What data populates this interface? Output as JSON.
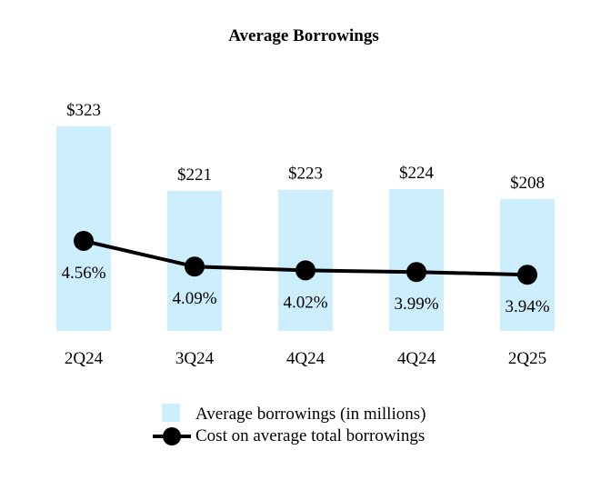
{
  "chart_data": {
    "type": "bar",
    "title": "Average Borrowings",
    "categories": [
      "2Q24",
      "3Q24",
      "4Q24",
      "4Q24",
      "2Q25"
    ],
    "series": [
      {
        "name": "Average borrowings (in millions)",
        "kind": "bar",
        "values": [
          323,
          221,
          223,
          224,
          208
        ],
        "labels": [
          "$323",
          "$221",
          "$223",
          "$224",
          "$208"
        ],
        "color": "#cdeefc"
      },
      {
        "name": "Cost on average total borrowings",
        "kind": "line",
        "values": [
          4.56,
          4.09,
          4.02,
          3.99,
          3.94
        ],
        "labels": [
          "4.56%",
          "4.09%",
          "4.02%",
          "3.99%",
          "3.94%"
        ],
        "color": "#000000"
      }
    ],
    "xlabel": "",
    "ylabel": "",
    "grid": false,
    "legend_position": "bottom-center"
  }
}
